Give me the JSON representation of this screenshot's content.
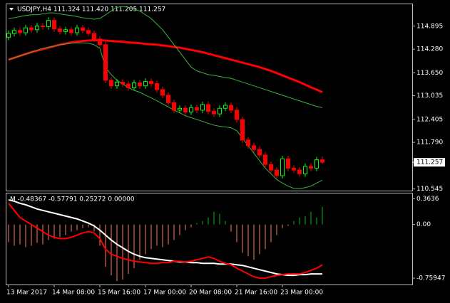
{
  "chart_data": [
    {
      "type": "candlestick",
      "title": "USDJPY,H4 111.324 111.420 111.205 111.257",
      "categories": [
        "13 Mar 2017",
        null,
        null,
        null,
        null,
        null,
        null,
        null,
        "14 Mar 08:00",
        null,
        null,
        null,
        null,
        null,
        null,
        null,
        "15 Mar 16:00",
        null,
        null,
        null,
        null,
        null,
        null,
        null,
        "17 Mar 00:00",
        null,
        null,
        null,
        null,
        null,
        null,
        null,
        "20 Mar 08:00",
        null,
        null,
        null,
        null,
        null,
        null,
        null,
        "21 Mar 16:00",
        null,
        null,
        null,
        null,
        null,
        null,
        null,
        "23 Mar 00:00",
        null,
        null,
        null,
        null,
        null,
        null,
        null
      ],
      "open": [
        114.6,
        114.7,
        114.78,
        114.72,
        114.85,
        114.8,
        114.9,
        114.88,
        115.05,
        114.82,
        114.75,
        114.8,
        114.72,
        114.85,
        114.78,
        114.7,
        114.55,
        114.4,
        113.45,
        113.3,
        113.4,
        113.35,
        113.25,
        113.38,
        113.3,
        113.42,
        113.36,
        113.2,
        113.05,
        112.85,
        112.65,
        112.7,
        112.6,
        112.72,
        112.65,
        112.8,
        112.62,
        112.55,
        112.7,
        112.78,
        112.65,
        112.4,
        111.85,
        111.7,
        111.6,
        111.45,
        111.2,
        111.05,
        110.9,
        111.35,
        111.1,
        111.05,
        110.95,
        111.15,
        111.1,
        111.324
      ],
      "high": [
        114.78,
        114.86,
        114.86,
        114.93,
        114.93,
        114.98,
        114.98,
        115.13,
        115.13,
        114.9,
        114.88,
        114.88,
        114.93,
        114.93,
        114.86,
        114.78,
        114.63,
        114.48,
        113.53,
        113.48,
        113.48,
        113.43,
        113.46,
        113.46,
        113.5,
        113.5,
        113.44,
        113.28,
        113.13,
        112.93,
        112.78,
        112.78,
        112.8,
        112.8,
        112.88,
        112.88,
        112.7,
        112.78,
        112.86,
        112.86,
        112.73,
        112.48,
        111.93,
        111.78,
        111.68,
        111.53,
        111.28,
        111.13,
        111.43,
        111.43,
        111.18,
        111.13,
        111.23,
        111.23,
        111.4,
        111.42
      ],
      "low": [
        114.52,
        114.62,
        114.64,
        114.64,
        114.72,
        114.72,
        114.8,
        114.8,
        114.74,
        114.67,
        114.67,
        114.64,
        114.64,
        114.7,
        114.62,
        114.47,
        114.32,
        113.37,
        113.22,
        113.22,
        113.27,
        113.17,
        113.17,
        113.22,
        113.22,
        113.28,
        113.12,
        112.97,
        112.77,
        112.57,
        112.57,
        112.52,
        112.52,
        112.57,
        112.57,
        112.54,
        112.47,
        112.47,
        112.62,
        112.57,
        112.32,
        111.77,
        111.62,
        111.52,
        111.37,
        111.12,
        110.97,
        110.82,
        110.82,
        111.02,
        110.97,
        110.87,
        110.87,
        111.02,
        111.02,
        111.205
      ],
      "close": [
        114.7,
        114.78,
        114.72,
        114.85,
        114.8,
        114.9,
        114.88,
        115.05,
        114.82,
        114.75,
        114.8,
        114.72,
        114.85,
        114.78,
        114.7,
        114.55,
        114.4,
        113.45,
        113.3,
        113.4,
        113.35,
        113.25,
        113.38,
        113.3,
        113.42,
        113.36,
        113.2,
        113.05,
        112.85,
        112.65,
        112.7,
        112.6,
        112.72,
        112.65,
        112.8,
        112.62,
        112.55,
        112.7,
        112.78,
        112.65,
        112.4,
        111.85,
        111.7,
        111.6,
        111.45,
        111.2,
        111.05,
        110.9,
        111.35,
        111.1,
        111.05,
        110.95,
        111.15,
        111.1,
        111.324,
        111.257
      ],
      "up_color": "#00ff00",
      "down_color": "#ff0000",
      "series": [
        {
          "color": "#ff0000",
          "width": 3,
          "values": [
            114.0,
            114.05,
            114.1,
            114.15,
            114.2,
            114.24,
            114.28,
            114.32,
            114.36,
            114.4,
            114.43,
            114.46,
            114.48,
            114.5,
            114.51,
            114.52,
            114.52,
            114.51,
            114.5,
            114.49,
            114.48,
            114.46,
            114.45,
            114.44,
            114.42,
            114.41,
            114.4,
            114.38,
            114.36,
            114.34,
            114.32,
            114.29,
            114.26,
            114.23,
            114.2,
            114.16,
            114.12,
            114.08,
            114.04,
            114.0,
            113.96,
            113.92,
            113.88,
            113.84,
            113.8,
            113.75,
            113.7,
            113.64,
            113.58,
            113.52,
            113.46,
            113.4,
            113.33,
            113.26,
            113.2,
            113.13
          ]
        },
        {
          "color": "#3cb33c",
          "width": 1,
          "values": [
            115.1,
            115.12,
            115.15,
            115.18,
            115.2,
            115.2,
            115.22,
            115.25,
            115.25,
            115.22,
            115.2,
            115.18,
            115.15,
            115.12,
            115.1,
            115.08,
            115.1,
            115.2,
            115.3,
            115.4,
            115.42,
            115.4,
            115.35,
            115.3,
            115.2,
            115.1,
            114.95,
            114.8,
            114.6,
            114.4,
            114.2,
            114.0,
            113.8,
            113.7,
            113.65,
            113.6,
            113.58,
            113.55,
            113.52,
            113.5,
            113.45,
            113.4,
            113.35,
            113.3,
            113.25,
            113.2,
            113.15,
            113.1,
            113.05,
            113.0,
            112.95,
            112.9,
            112.85,
            112.8,
            112.75,
            112.72
          ]
        },
        {
          "color": "#3cb33c",
          "width": 1,
          "values": [
            114.0,
            114.05,
            114.1,
            114.15,
            114.2,
            114.25,
            114.3,
            114.33,
            114.36,
            114.4,
            114.42,
            114.44,
            114.45,
            114.45,
            114.44,
            114.4,
            114.3,
            113.8,
            113.6,
            113.45,
            113.35,
            113.25,
            113.18,
            113.13,
            113.05,
            112.98,
            112.9,
            112.82,
            112.74,
            112.65,
            112.58,
            112.5,
            112.45,
            112.4,
            112.35,
            112.3,
            112.25,
            112.22,
            112.2,
            112.18,
            112.1,
            111.9,
            111.7,
            111.5,
            111.3,
            111.1,
            110.95,
            110.8,
            110.7,
            110.62,
            110.56,
            110.55,
            110.58,
            110.62,
            110.7,
            110.78
          ]
        }
      ],
      "ylim": [
        110.5,
        115.48
      ],
      "yticks": [
        114.895,
        {
          "value": 114.28,
          "label": "114.280"
        },
        {
          "value": 113.65,
          "label": "113.650"
        },
        113.035,
        112.405,
        {
          "value": 111.79,
          "label": "111.790"
        },
        110.545
      ]
    },
    {
      "type": "histogram-lines",
      "title": "M -0.48367 -0.57791 0.25272 0.00000",
      "values": [
        -0.25,
        -0.3,
        -0.28,
        -0.32,
        -0.3,
        -0.26,
        -0.28,
        -0.22,
        -0.2,
        -0.18,
        -0.15,
        -0.1,
        -0.08,
        -0.05,
        -0.04,
        -0.1,
        -0.3,
        -0.6,
        -0.72,
        -0.8,
        -0.78,
        -0.7,
        -0.62,
        -0.5,
        -0.42,
        -0.35,
        -0.3,
        -0.32,
        -0.28,
        -0.22,
        -0.15,
        -0.08,
        -0.04,
        0.02,
        0.05,
        0.1,
        0.18,
        0.15,
        0.05,
        -0.1,
        -0.25,
        -0.4,
        -0.45,
        -0.5,
        -0.42,
        -0.35,
        -0.25,
        -0.15,
        -0.05,
        -0.02,
        0.05,
        0.1,
        0.12,
        0.18,
        0.1,
        0.25
      ],
      "up_color": "#00c000",
      "down_color": "#ff7f50",
      "series": [
        {
          "color": "#ffffff",
          "width": 2,
          "values": [
            0.35,
            0.33,
            0.3,
            0.28,
            0.25,
            0.22,
            0.2,
            0.18,
            0.16,
            0.14,
            0.12,
            0.1,
            0.08,
            0.05,
            0.02,
            -0.02,
            -0.08,
            -0.15,
            -0.22,
            -0.28,
            -0.33,
            -0.38,
            -0.42,
            -0.45,
            -0.47,
            -0.48,
            -0.49,
            -0.5,
            -0.51,
            -0.52,
            -0.53,
            -0.53,
            -0.54,
            -0.54,
            -0.55,
            -0.55,
            -0.55,
            -0.56,
            -0.56,
            -0.56,
            -0.57,
            -0.58,
            -0.6,
            -0.62,
            -0.64,
            -0.66,
            -0.68,
            -0.7,
            -0.71,
            -0.72,
            -0.72,
            -0.71,
            -0.71,
            -0.7,
            -0.7,
            -0.7
          ]
        },
        {
          "color": "#ff0000",
          "width": 2,
          "values": [
            0.3,
            0.2,
            0.1,
            0.05,
            0.0,
            -0.05,
            -0.1,
            -0.15,
            -0.18,
            -0.2,
            -0.2,
            -0.18,
            -0.15,
            -0.12,
            -0.1,
            -0.12,
            -0.2,
            -0.35,
            -0.42,
            -0.45,
            -0.48,
            -0.5,
            -0.52,
            -0.53,
            -0.54,
            -0.55,
            -0.55,
            -0.54,
            -0.54,
            -0.52,
            -0.52,
            -0.53,
            -0.52,
            -0.5,
            -0.48,
            -0.46,
            -0.48,
            -0.52,
            -0.55,
            -0.57,
            -0.62,
            -0.66,
            -0.7,
            -0.74,
            -0.76,
            -0.76,
            -0.74,
            -0.72,
            -0.71,
            -0.7,
            -0.7,
            -0.7,
            -0.68,
            -0.65,
            -0.62,
            -0.57
          ]
        }
      ],
      "ylim": [
        -0.85,
        0.44
      ],
      "yticks": [
        0.3636,
        {
          "value": 0,
          "label": "0.00"
        },
        -0.75947
      ]
    }
  ]
}
